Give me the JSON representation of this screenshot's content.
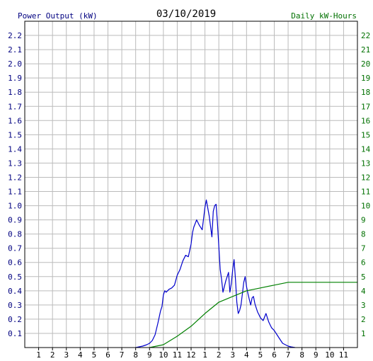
{
  "chart_data": {
    "type": "line",
    "title": "03/10/2019",
    "y_left_label": "Power Output (kW)",
    "y_right_label": "Daily kW-Hours",
    "x_ticks": [
      "1",
      "2",
      "3",
      "4",
      "5",
      "6",
      "7",
      "8",
      "9",
      "10",
      "11",
      "12",
      "1",
      "2",
      "3",
      "4",
      "5",
      "6",
      "7",
      "8",
      "9",
      "10",
      "11"
    ],
    "x_range": [
      0,
      24
    ],
    "y_left_ticks": [
      "0.1",
      "0.2",
      "0.3",
      "0.4",
      "0.5",
      "0.6",
      "0.7",
      "0.8",
      "0.9",
      "1.0",
      "1.1",
      "1.2",
      "1.3",
      "1.4",
      "1.5",
      "1.6",
      "1.7",
      "1.8",
      "1.9",
      "2.0",
      "2.1",
      "2.2"
    ],
    "y_left_range": [
      0,
      2.3
    ],
    "y_right_ticks": [
      "1",
      "2",
      "3",
      "4",
      "5",
      "6",
      "7",
      "8",
      "9",
      "10",
      "11",
      "12",
      "13",
      "14",
      "15",
      "16",
      "17",
      "18",
      "19",
      "20",
      "21",
      "22"
    ],
    "y_right_range": [
      0,
      23
    ],
    "grid": true,
    "colors": {
      "power": "#0000cc",
      "energy": "#008000",
      "grid": "#bbbbbb",
      "left_axis_text": "#000080",
      "right_axis_text": "#007000",
      "title_text": "#000000"
    },
    "series": [
      {
        "axis": "left",
        "color": "#0000cc",
        "x": [
          8.0,
          8.5,
          8.8,
          9.0,
          9.2,
          9.4,
          9.6,
          9.8,
          9.9,
          10.0,
          10.1,
          10.2,
          10.4,
          10.6,
          10.8,
          11.0,
          11.2,
          11.4,
          11.6,
          11.8,
          12.0,
          12.1,
          12.2,
          12.4,
          12.6,
          12.8,
          13.0,
          13.1,
          13.3,
          13.5,
          13.6,
          13.7,
          13.8,
          13.9,
          14.0,
          14.1,
          14.2,
          14.3,
          14.5,
          14.7,
          14.8,
          14.9,
          15.0,
          15.1,
          15.2,
          15.3,
          15.4,
          15.5,
          15.6,
          15.7,
          15.8,
          15.9,
          16.0,
          16.1,
          16.2,
          16.3,
          16.4,
          16.5,
          16.6,
          16.7,
          16.8,
          16.9,
          17.0,
          17.2,
          17.4,
          17.6,
          17.8,
          18.0,
          18.2,
          18.4,
          18.6,
          18.8,
          19.0,
          19.2,
          19.5
        ],
        "y": [
          0.0,
          0.01,
          0.02,
          0.03,
          0.05,
          0.09,
          0.17,
          0.26,
          0.29,
          0.37,
          0.4,
          0.39,
          0.41,
          0.42,
          0.44,
          0.51,
          0.55,
          0.61,
          0.65,
          0.64,
          0.73,
          0.81,
          0.85,
          0.9,
          0.86,
          0.83,
          0.99,
          1.04,
          0.93,
          0.78,
          0.96,
          1.0,
          1.01,
          0.88,
          0.71,
          0.55,
          0.48,
          0.39,
          0.47,
          0.53,
          0.39,
          0.45,
          0.55,
          0.62,
          0.48,
          0.32,
          0.24,
          0.26,
          0.3,
          0.38,
          0.46,
          0.5,
          0.43,
          0.38,
          0.34,
          0.3,
          0.35,
          0.36,
          0.31,
          0.28,
          0.25,
          0.23,
          0.21,
          0.19,
          0.24,
          0.18,
          0.14,
          0.12,
          0.09,
          0.06,
          0.03,
          0.02,
          0.01,
          0.005,
          0.0
        ]
      },
      {
        "axis": "right",
        "color": "#008000",
        "x": [
          9.0,
          10.0,
          11.0,
          12.0,
          13.0,
          14.0,
          15.0,
          16.0,
          17.0,
          18.0,
          19.0,
          20.0,
          22.0,
          24.0
        ],
        "y": [
          0.0,
          0.2,
          0.8,
          1.5,
          2.4,
          3.2,
          3.6,
          4.0,
          4.2,
          4.4,
          4.6,
          4.6,
          4.6,
          4.6
        ]
      }
    ]
  }
}
